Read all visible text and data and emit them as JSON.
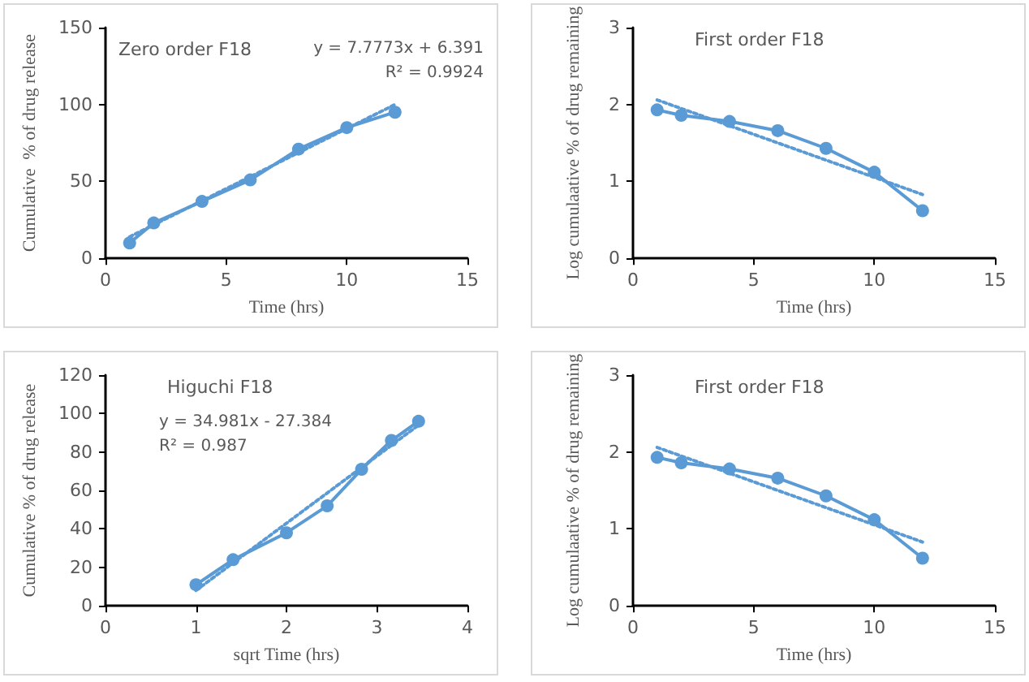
{
  "chart_data": [
    {
      "type": "line",
      "title": "Zero order F18",
      "xlabel": "Time (hrs)",
      "ylabel": "Cumulative  % of drug release",
      "x": [
        1,
        2,
        4,
        6,
        8,
        10,
        12
      ],
      "xlim": [
        0,
        15
      ],
      "xticks": [
        0,
        5,
        10,
        15
      ],
      "ylim": [
        0,
        150
      ],
      "yticks": [
        0,
        50,
        100,
        150
      ],
      "grid": false,
      "marker": "circle",
      "line_style": "solid",
      "annotations": [
        "y = 7.7773x + 6.391",
        "R² = 0.9924"
      ],
      "series": [
        {
          "color": "#5b9bd5",
          "values": [
            10,
            23,
            37,
            51,
            71,
            85,
            95
          ]
        },
        {
          "type": "line",
          "color": "#5b9bd5",
          "x": [
            1,
            12
          ],
          "values": [
            14,
            100
          ],
          "marker": "none",
          "line_style": "dotted"
        }
      ]
    },
    {
      "type": "line",
      "title": "First order F18",
      "xlabel": "Time (hrs)",
      "ylabel": "Log cumulaative % of drug remaining",
      "x": [
        1,
        2,
        4,
        6,
        8,
        10,
        12
      ],
      "xlim": [
        0,
        15
      ],
      "xticks": [
        0,
        5,
        10,
        15
      ],
      "ylim": [
        0,
        3
      ],
      "yticks": [
        0,
        1,
        2,
        3
      ],
      "grid": false,
      "marker": "circle",
      "line_style": "solid",
      "series": [
        {
          "color": "#5b9bd5",
          "values": [
            1.93,
            1.86,
            1.78,
            1.66,
            1.43,
            1.12,
            0.62
          ]
        },
        {
          "type": "line",
          "color": "#5b9bd5",
          "x": [
            1,
            12
          ],
          "values": [
            2.06,
            0.83
          ],
          "marker": "none",
          "line_style": "dotted"
        }
      ]
    },
    {
      "type": "line",
      "title": "Higuchi F18",
      "xlabel": "sqrt Time (hrs)",
      "ylabel": "Cumulative % of drug release",
      "x": [
        1,
        1.41,
        2,
        2.45,
        2.83,
        3.16,
        3.46
      ],
      "xlim": [
        0,
        4
      ],
      "xticks": [
        0,
        1,
        2,
        3,
        4
      ],
      "ylim": [
        0,
        120
      ],
      "yticks": [
        0,
        20,
        40,
        60,
        80,
        100,
        120
      ],
      "grid": false,
      "marker": "circle",
      "line_style": "solid",
      "annotations": [
        "y = 34.981x - 27.384",
        "R² = 0.987"
      ],
      "series": [
        {
          "color": "#5b9bd5",
          "values": [
            11,
            24,
            38,
            52,
            71,
            86,
            96
          ]
        },
        {
          "type": "line",
          "color": "#5b9bd5",
          "x": [
            1,
            3.46
          ],
          "values": [
            8,
            94
          ],
          "marker": "none",
          "line_style": "dotted"
        }
      ]
    },
    {
      "type": "line",
      "title": "First order F18",
      "xlabel": "Time (hrs)",
      "ylabel": "Log cumulaative % of drug remaining",
      "x": [
        1,
        2,
        4,
        6,
        8,
        10,
        12
      ],
      "xlim": [
        0,
        15
      ],
      "xticks": [
        0,
        5,
        10,
        15
      ],
      "ylim": [
        0,
        3
      ],
      "yticks": [
        0,
        1,
        2,
        3
      ],
      "grid": false,
      "marker": "circle",
      "line_style": "solid",
      "series": [
        {
          "color": "#5b9bd5",
          "values": [
            1.93,
            1.86,
            1.78,
            1.66,
            1.43,
            1.12,
            0.62
          ]
        },
        {
          "type": "line",
          "color": "#5b9bd5",
          "x": [
            1,
            12
          ],
          "values": [
            2.06,
            0.83
          ],
          "marker": "none",
          "line_style": "dotted"
        }
      ]
    }
  ]
}
